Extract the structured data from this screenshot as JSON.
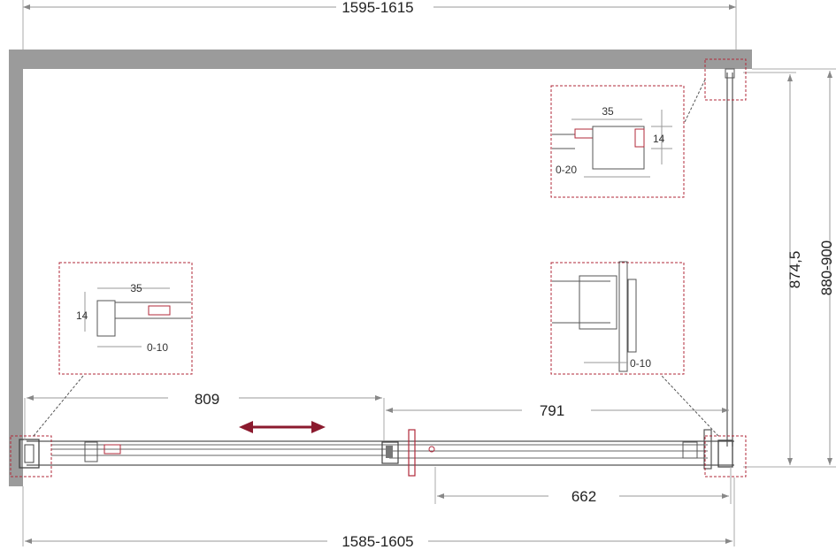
{
  "colors": {
    "wall": "#9b9b9b",
    "line": "#555555",
    "dim_line": "#999999",
    "detail_dash": "#b0283a",
    "arrow": "#8b1a2e",
    "text": "#222222"
  },
  "dimensions": {
    "top_width": "1595-1615",
    "bottom_width": "1585-1605",
    "left_door": "809",
    "right_door": "791",
    "opening": "662",
    "panel_height": "874,5",
    "total_depth": "880-900"
  },
  "details": {
    "top_right": {
      "width": "35",
      "height": "14",
      "adjust": "0-20"
    },
    "left": {
      "width": "35",
      "height": "14",
      "adjust": "0-10"
    },
    "right_bottom": {
      "adjust": "0-10"
    }
  },
  "arrow": {
    "icon": "double-arrow-icon"
  }
}
